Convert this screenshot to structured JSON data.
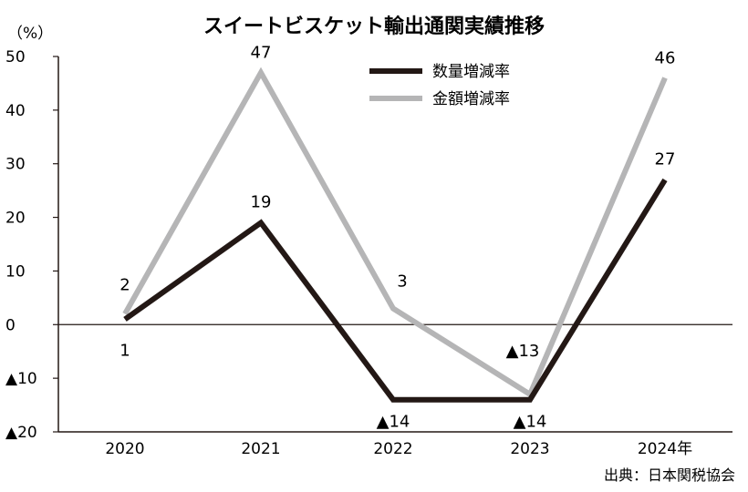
{
  "chart_data": {
    "type": "line",
    "title": "スイートビスケット輸出通関実績推移",
    "ylabel": "（%）",
    "xlabel": "",
    "source": "出典：日本関税協会",
    "categories": [
      "2020",
      "2021",
      "2022",
      "2023",
      "2024年"
    ],
    "ylim": [
      -20,
      50
    ],
    "yticks": [
      {
        "value": 50,
        "label": "50"
      },
      {
        "value": 40,
        "label": "40"
      },
      {
        "value": 30,
        "label": "30"
      },
      {
        "value": 20,
        "label": "20"
      },
      {
        "value": 10,
        "label": "10"
      },
      {
        "value": 0,
        "label": "0"
      },
      {
        "value": -10,
        "label": "▲10"
      },
      {
        "value": -20,
        "label": "▲20"
      }
    ],
    "grid": false,
    "legend_position": "top-center",
    "series": [
      {
        "name": "数量増減率",
        "color": "#231815",
        "values": [
          1,
          19,
          -14,
          -14,
          27
        ],
        "labels": [
          "1",
          "19",
          "▲14",
          "▲14",
          "27"
        ]
      },
      {
        "name": "金額増減率",
        "color": "#b5b5b6",
        "values": [
          2,
          47,
          3,
          -13,
          46
        ],
        "labels": [
          "2",
          "47",
          "3",
          "▲13",
          "46"
        ]
      }
    ]
  }
}
